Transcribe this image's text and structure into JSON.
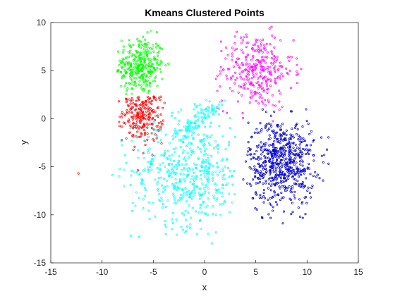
{
  "chart_data": {
    "type": "scatter",
    "title": "Kmeans Clustered Points",
    "xlabel": "x",
    "ylabel": "y",
    "xlim": [
      -15,
      15
    ],
    "ylim": [
      -15,
      10
    ],
    "xticks": [
      "-15",
      "-10",
      "-5",
      "0",
      "5",
      "10",
      "15"
    ],
    "yticks": [
      "10",
      "5",
      "0",
      "-5",
      "-10",
      "-15"
    ],
    "grid": false,
    "legend": false,
    "marker": "o",
    "series": [
      {
        "color": "#00ff00",
        "center": [
          -6.3,
          5.5
        ],
        "spread": [
          1.2,
          1.5
        ],
        "count": 320,
        "x_range": [
          -8.5,
          -3.5
        ],
        "y_range": [
          2.3,
          9.6
        ]
      },
      {
        "color": "#ff0000",
        "center": [
          -6.0,
          0.8
        ],
        "spread": [
          1.0,
          1.6
        ],
        "count": 240,
        "x_range": [
          -8.5,
          -3.8
        ],
        "y_range": [
          -5.5,
          2.3
        ],
        "outliers": [
          [
            -12.3,
            -5.7
          ]
        ]
      },
      {
        "color": "#ff00ff",
        "center": [
          5.0,
          5.0
        ],
        "spread": [
          1.8,
          2.0
        ],
        "count": 320,
        "x_range": [
          1.0,
          9.5
        ],
        "y_range": [
          -0.3,
          9.6
        ]
      },
      {
        "color": "#00ffff",
        "center": [
          -1.5,
          -5.5
        ],
        "spread": [
          2.8,
          2.8
        ],
        "count": 520,
        "x_range": [
          -9.0,
          3.0
        ],
        "y_range": [
          -14.0,
          2.3
        ]
      },
      {
        "color": "#0000cc",
        "center": [
          7.5,
          -4.5
        ],
        "spread": [
          1.6,
          2.2
        ],
        "count": 640,
        "x_range": [
          3.5,
          12.8
        ],
        "y_range": [
          -11.8,
          1.5
        ]
      }
    ],
    "bridge": {
      "color": "#00ffff",
      "from": [
        -2.5,
        -1.5
      ],
      "to": [
        1.5,
        1.5
      ],
      "count": 90
    }
  }
}
